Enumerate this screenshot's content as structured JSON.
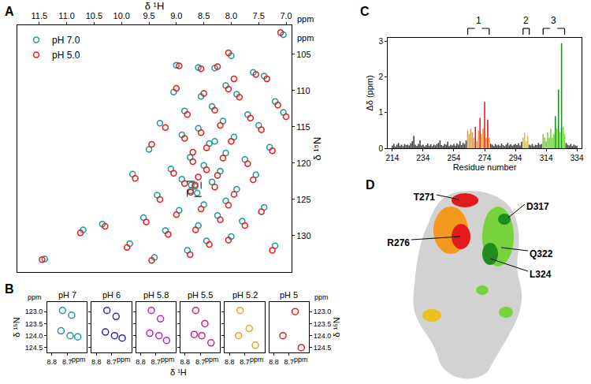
{
  "chart_data": [
    {
      "panel": "A",
      "type": "scatter",
      "x_label": "δ ¹H",
      "y_label": "δ ¹⁵N",
      "unit": "ppm",
      "marker": "circle-open",
      "legend": "upper left",
      "xlim": [
        11.9,
        6.9
      ],
      "xticks": [
        11.5,
        {
          "value": 11,
          "label": "11.0"
        },
        10.5,
        {
          "value": 10,
          "label": "10.0"
        },
        9.5,
        {
          "value": 9,
          "label": "9.0"
        },
        8.5,
        {
          "value": 8,
          "label": "8.0"
        },
        7.5,
        {
          "value": 7,
          "label": "7.0"
        }
      ],
      "ylim": [
        135,
        101
      ],
      "yticks": [
        105,
        110,
        115,
        120,
        125,
        130
      ],
      "zoom_box": {
        "x": [
          8.8,
          8.55
        ],
        "y": [
          122.5,
          124.6
        ]
      },
      "series": [
        {
          "name": "pH 7.0",
          "color": "#1a9a96",
          "x": [
            7.05,
            9.0,
            8.6,
            8.3,
            7.6,
            7.4,
            8.1,
            7.9,
            8.55,
            9.05,
            7.2,
            8.35,
            8.85,
            7.7,
            8.15,
            9.3,
            7.5,
            8.6,
            8.9,
            7.95,
            8.4,
            7.3,
            9.5,
            8.1,
            8.75,
            7.75,
            8.5,
            9.1,
            8.2,
            7.55,
            8.9,
            8.35,
            8.73,
            8.66,
            8.74,
            8.62,
            7.9,
            9.35,
            8.1,
            8.5,
            7.4,
            8.95,
            8.25,
            9.6,
            7.8,
            8.6,
            10.35,
            9.2,
            8.0,
            8.45,
            9.85,
            7.2,
            8.8,
            11.4,
            9.4,
            8.3,
            7.05,
            9.8,
            10.7,
            8.0
          ],
          "y": [
            102.3,
            106.5,
            106.8,
            106.9,
            107.5,
            108,
            109.3,
            110.5,
            110.8,
            110.2,
            111.5,
            112.2,
            112.8,
            113.3,
            114.2,
            114.5,
            114.8,
            115.2,
            116.1,
            116.4,
            117.3,
            117.8,
            118.1,
            118.6,
            119.2,
            119.5,
            120.3,
            120.8,
            121.1,
            121.6,
            122.2,
            122.6,
            123.0,
            123.2,
            123.8,
            124.1,
            123.6,
            124.4,
            125.2,
            125.7,
            126.1,
            126.5,
            127.2,
            127.5,
            128.0,
            128.6,
            128.4,
            129.3,
            130.1,
            130.7,
            131.1,
            131.4,
            132.0,
            133.2,
            133.0,
            117.0,
            113.0,
            121.5,
            129.2,
            105.2
          ]
        },
        {
          "name": "pH 5.0",
          "color": "#e8191c",
          "x": [
            7.1,
            8.95,
            8.55,
            8.25,
            7.55,
            7.35,
            8.05,
            7.85,
            8.5,
            9.0,
            7.15,
            8.3,
            8.8,
            7.65,
            8.2,
            9.2,
            7.45,
            8.55,
            8.85,
            8.0,
            8.45,
            7.25,
            9.45,
            8.15,
            8.7,
            7.7,
            8.45,
            9.05,
            8.25,
            7.6,
            8.85,
            8.3,
            8.66,
            8.74,
            7.95,
            9.3,
            8.05,
            8.55,
            7.45,
            9.0,
            8.2,
            9.55,
            7.75,
            8.65,
            10.3,
            9.15,
            8.05,
            8.4,
            9.9,
            7.25,
            8.75,
            11.45,
            9.45,
            8.7,
            7.0,
            9.75,
            10.75,
            8.05,
            7.95,
            8.6
          ],
          "y": [
            102.0,
            106.6,
            107.0,
            106.7,
            107.8,
            108.4,
            109.8,
            110.9,
            110.4,
            109.7,
            112.0,
            112.7,
            113.3,
            113.8,
            114.8,
            115.1,
            115.4,
            115.8,
            116.6,
            117.0,
            117.9,
            118.3,
            117.4,
            119.3,
            119.8,
            120.1,
            120.9,
            121.4,
            121.7,
            122.3,
            122.8,
            123.3,
            123.0,
            124.0,
            124.3,
            125.0,
            125.8,
            126.3,
            126.7,
            127.1,
            127.8,
            128.1,
            128.6,
            129.2,
            128.7,
            129.8,
            130.6,
            131.2,
            131.6,
            132.0,
            132.6,
            133.3,
            133.4,
            118.5,
            113.6,
            122.1,
            129.6,
            104.8,
            108.4,
            121.9
          ]
        }
      ]
    },
    {
      "panel": "B",
      "type": "scatter",
      "x_label": "δ ¹H",
      "y_label": "δ ¹⁵N",
      "unit": "ppm",
      "marker": "circle-open",
      "xlim": [
        8.83,
        8.57
      ],
      "xticks": [
        8.8,
        8.7
      ],
      "ylim": [
        124.7,
        122.6
      ],
      "yticks": [
        {
          "value": 123,
          "label": "123.0"
        },
        123.5,
        {
          "value": 124,
          "label": "124.0"
        },
        124.5
      ],
      "series": [
        {
          "name": "pH 7",
          "color": "#1a9a96",
          "x": [
            8.73,
            8.67,
            8.74,
            8.68,
            8.63
          ],
          "y": [
            122.95,
            123.15,
            123.8,
            124.0,
            124.05
          ]
        },
        {
          "name": "pH 6",
          "color": "#2b2bc4",
          "x": [
            8.73,
            8.67,
            8.74,
            8.68,
            8.63
          ],
          "y": [
            122.95,
            123.2,
            123.85,
            124.0,
            124.1
          ]
        },
        {
          "name": "pH 5.8",
          "color": "#c020c0",
          "x": [
            8.73,
            8.67,
            8.74,
            8.68,
            8.63
          ],
          "y": [
            122.95,
            123.3,
            123.9,
            124.0,
            124.2
          ]
        },
        {
          "name": "pH 5.5",
          "color": "#d0207a",
          "x": [
            8.73,
            8.67,
            8.74,
            8.69,
            8.63
          ],
          "y": [
            122.95,
            123.5,
            123.95,
            124.0,
            124.3
          ]
        },
        {
          "name": "pH 5.2",
          "color": "#f0a020",
          "x": [
            8.73,
            8.67,
            8.74,
            8.63
          ],
          "y": [
            122.95,
            123.7,
            124.0,
            124.4
          ]
        },
        {
          "name": "pH 5",
          "color": "#e02020",
          "x": [
            8.66,
            8.74,
            8.62
          ],
          "y": [
            123.0,
            124.0,
            124.5
          ]
        }
      ]
    },
    {
      "panel": "C",
      "type": "bar",
      "x_label": "Residue number",
      "y_label": "Δδ (ppm)",
      "xlim": [
        211,
        337
      ],
      "xticks": [
        214,
        234,
        254,
        274,
        294,
        314,
        334
      ],
      "ylim": [
        0,
        3.1
      ],
      "yticks": [
        0,
        1,
        2,
        3
      ],
      "brackets": [
        {
          "label": "1",
          "x": [
            263,
            277
          ]
        },
        {
          "label": "2",
          "x": [
            299,
            303
          ]
        },
        {
          "label": "3",
          "x": [
            312,
            326
          ]
        }
      ],
      "x": [
        214,
        215,
        216,
        217,
        218,
        219,
        220,
        221,
        222,
        223,
        224,
        225,
        226,
        227,
        228,
        229,
        230,
        231,
        232,
        233,
        234,
        235,
        236,
        237,
        238,
        239,
        240,
        241,
        242,
        243,
        244,
        245,
        246,
        247,
        248,
        249,
        250,
        251,
        252,
        253,
        254,
        255,
        256,
        257,
        258,
        259,
        260,
        261,
        262,
        263,
        264,
        265,
        266,
        267,
        268,
        269,
        270,
        271,
        272,
        273,
        274,
        275,
        276,
        277,
        278,
        279,
        280,
        281,
        282,
        283,
        284,
        285,
        286,
        287,
        288,
        289,
        290,
        291,
        292,
        293,
        294,
        295,
        296,
        297,
        298,
        299,
        300,
        301,
        302,
        303,
        304,
        305,
        306,
        307,
        308,
        309,
        310,
        311,
        312,
        313,
        314,
        315,
        316,
        317,
        318,
        319,
        320,
        321,
        322,
        323,
        324,
        325,
        326,
        327,
        328,
        329,
        330,
        331,
        332,
        333,
        334
      ],
      "values": [
        0.08,
        0.12,
        0.05,
        0.1,
        0.15,
        0.07,
        0.1,
        0.06,
        0.12,
        0.09,
        0.1,
        0.08,
        0.14,
        0.2,
        0.35,
        0.1,
        0.06,
        0.12,
        0.22,
        0.08,
        0.1,
        0.05,
        0.09,
        0.13,
        0.07,
        0.11,
        0.06,
        0.1,
        0.08,
        0.12,
        0.15,
        0.22,
        0.09,
        0.07,
        0.12,
        0.1,
        0.18,
        0.06,
        0.1,
        0.08,
        0.12,
        0.07,
        0.14,
        0.1,
        0.2,
        0.09,
        0.15,
        0.12,
        0.22,
        0.5,
        0.4,
        0.55,
        0.45,
        0.3,
        0.6,
        0.2,
        0.5,
        0.85,
        0.4,
        0.55,
        1.3,
        0.3,
        0.8,
        0.3,
        0.12,
        0.1,
        0.06,
        0.12,
        0.08,
        0.1,
        0.07,
        0.13,
        0.09,
        0.06,
        0.1,
        0.15,
        0.08,
        0.11,
        0.07,
        0.1,
        0.12,
        0.09,
        0.14,
        0.08,
        0.18,
        0.3,
        0.45,
        0.2,
        0.35,
        0.1,
        0.08,
        0.12,
        0.06,
        0.1,
        0.09,
        0.15,
        0.1,
        0.12,
        0.4,
        0.3,
        0.2,
        0.45,
        0.3,
        0.55,
        0.3,
        0.4,
        0.9,
        0.55,
        1.65,
        0.45,
        2.95,
        0.6,
        0.4,
        0.15,
        0.1,
        0.08,
        0.12,
        0.06,
        0.1,
        0.08,
        0.07
      ],
      "colors": [
        "#3c3c3c",
        "#3c3c3c",
        "#3c3c3c",
        "#3c3c3c",
        "#3c3c3c",
        "#3c3c3c",
        "#3c3c3c",
        "#3c3c3c",
        "#3c3c3c",
        "#3c3c3c",
        "#3c3c3c",
        "#3c3c3c",
        "#3c3c3c",
        "#3c3c3c",
        "#3c3c3c",
        "#3c3c3c",
        "#3c3c3c",
        "#3c3c3c",
        "#3c3c3c",
        "#3c3c3c",
        "#3c3c3c",
        "#3c3c3c",
        "#3c3c3c",
        "#3c3c3c",
        "#3c3c3c",
        "#3c3c3c",
        "#3c3c3c",
        "#3c3c3c",
        "#3c3c3c",
        "#3c3c3c",
        "#3c3c3c",
        "#3c3c3c",
        "#3c3c3c",
        "#3c3c3c",
        "#3c3c3c",
        "#3c3c3c",
        "#3c3c3c",
        "#3c3c3c",
        "#3c3c3c",
        "#3c3c3c",
        "#3c3c3c",
        "#3c3c3c",
        "#3c3c3c",
        "#3c3c3c",
        "#3c3c3c",
        "#3c3c3c",
        "#3c3c3c",
        "#3c3c3c",
        "#3c3c3c",
        "#f39a1e",
        "#f39a1e",
        "#f39a1e",
        "#f39a1e",
        "#f39a1e",
        "#e31a1c",
        "#f39a1e",
        "#f39a1e",
        "#e31a1c",
        "#f39a1e",
        "#f39a1e",
        "#e31a1c",
        "#f39a1e",
        "#e31a1c",
        "#f39a1e",
        "#3c3c3c",
        "#3c3c3c",
        "#3c3c3c",
        "#3c3c3c",
        "#3c3c3c",
        "#3c3c3c",
        "#3c3c3c",
        "#3c3c3c",
        "#3c3c3c",
        "#3c3c3c",
        "#3c3c3c",
        "#3c3c3c",
        "#3c3c3c",
        "#3c3c3c",
        "#3c3c3c",
        "#3c3c3c",
        "#3c3c3c",
        "#3c3c3c",
        "#3c3c3c",
        "#3c3c3c",
        "#3c3c3c",
        "#e8c020",
        "#e8c020",
        "#e8c020",
        "#e8c020",
        "#3c3c3c",
        "#3c3c3c",
        "#3c3c3c",
        "#3c3c3c",
        "#3c3c3c",
        "#3c3c3c",
        "#3c3c3c",
        "#3c3c3c",
        "#3c3c3c",
        "#78d23c",
        "#78d23c",
        "#78d23c",
        "#78d23c",
        "#78d23c",
        "#78d23c",
        "#78d23c",
        "#78d23c",
        "#1e8c1e",
        "#78d23c",
        "#1e8c1e",
        "#78d23c",
        "#1e8c1e",
        "#78d23c",
        "#78d23c",
        "#3c3c3c",
        "#3c3c3c",
        "#3c3c3c",
        "#3c3c3c",
        "#3c3c3c",
        "#3c3c3c",
        "#3c3c3c",
        "#3c3c3c"
      ]
    }
  ],
  "diagram": {
    "panel": "D",
    "labels": [
      "T271",
      "D317",
      "R276",
      "Q322",
      "L324"
    ]
  }
}
